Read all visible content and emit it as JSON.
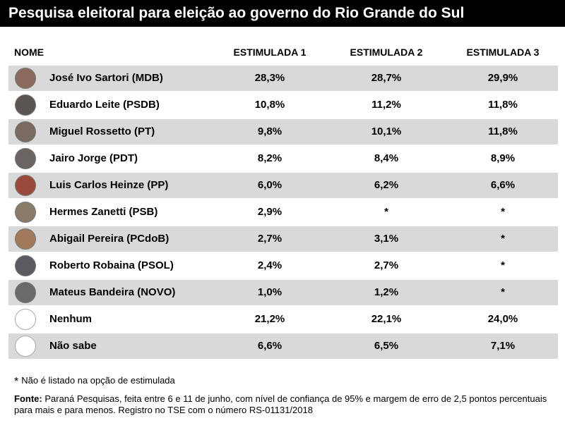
{
  "header": {
    "title": "Pesquisa eleitoral para eleição ao governo do Rio Grande do Sul"
  },
  "table": {
    "columns": [
      "NOME",
      "ESTIMULADA 1",
      "ESTIMULADA 2",
      "ESTIMULADA 3"
    ],
    "rows": [
      [
        "José Ivo Sartori (MDB)",
        "28,3%",
        "28,7%",
        "29,9%"
      ],
      [
        "Eduardo Leite (PSDB)",
        "10,8%",
        "11,2%",
        "11,8%"
      ],
      [
        "Miguel Rossetto (PT)",
        "9,8%",
        "10,1%",
        "11,8%"
      ],
      [
        "Jairo Jorge (PDT)",
        "8,2%",
        "8,4%",
        "8,9%"
      ],
      [
        "Luis Carlos Heinze (PP)",
        "6,0%",
        "6,2%",
        "6,6%"
      ],
      [
        "Hermes Zanetti (PSB)",
        "2,9%",
        "*",
        "*"
      ],
      [
        "Abigail Pereira (PCdoB)",
        "2,7%",
        "3,1%",
        "*"
      ],
      [
        "Roberto Robaina (PSOL)",
        "2,4%",
        "2,7%",
        "*"
      ],
      [
        "Mateus Bandeira (NOVO)",
        "1,0%",
        "1,2%",
        "*"
      ],
      [
        "Nenhum",
        "21,2%",
        "22,1%",
        "24,0%"
      ],
      [
        "Não sabe",
        "6,6%",
        "6,5%",
        "7,1%"
      ]
    ]
  },
  "footnote": {
    "mark": "*",
    "text": "Não é listado na opção de estimulada"
  },
  "source": {
    "label": "Fonte:",
    "text": "Paraná Pesquisas, feita entre 6 e 11 de junho, com nível de confiança de 95% e margem de erro de 2,5 pontos percentuais para mais e para menos. Registro no TSE com o número RS-01131/2018"
  }
}
